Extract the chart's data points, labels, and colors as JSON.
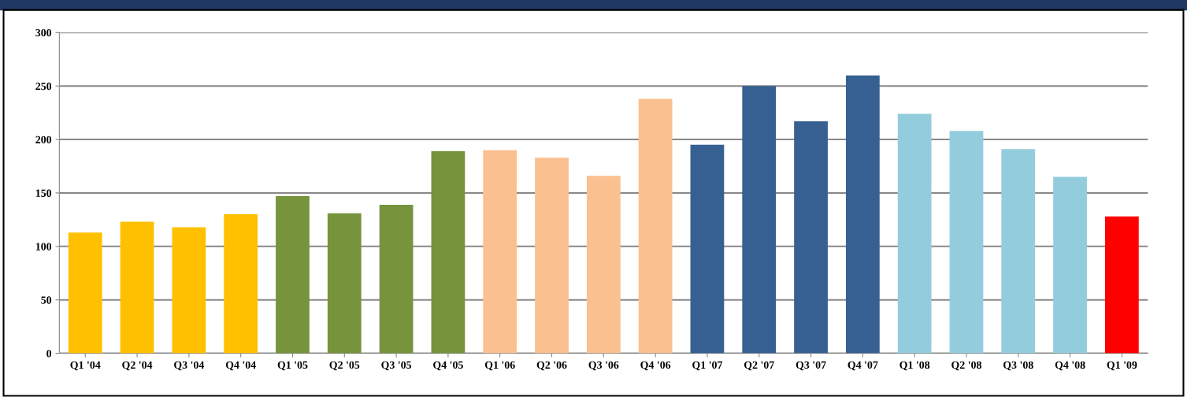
{
  "chart_data": {
    "type": "bar",
    "categories": [
      "Q1 '04",
      "Q2 '04",
      "Q3 '04",
      "Q4 '04",
      "Q1 '05",
      "Q2 '05",
      "Q3 '05",
      "Q4 '05",
      "Q1 '06",
      "Q2 '06",
      "Q3 '06",
      "Q4 '06",
      "Q1 '07",
      "Q2 '07",
      "Q3 '07",
      "Q4 '07",
      "Q1 '08",
      "Q2 '08",
      "Q3 '08",
      "Q4 '08",
      "Q1 '09"
    ],
    "values": [
      113,
      123,
      118,
      130,
      147,
      131,
      139,
      189,
      190,
      183,
      166,
      238,
      195,
      250,
      217,
      260,
      224,
      208,
      191,
      165,
      128
    ],
    "colors": [
      "#ffc000",
      "#ffc000",
      "#ffc000",
      "#ffc000",
      "#77933c",
      "#77933c",
      "#77933c",
      "#77933c",
      "#fac090",
      "#fac090",
      "#fac090",
      "#fac090",
      "#376092",
      "#376092",
      "#376092",
      "#376092",
      "#93cddd",
      "#93cddd",
      "#93cddd",
      "#93cddd",
      "#ff0000"
    ],
    "ylim": [
      0,
      300
    ],
    "yticks": [
      0,
      50,
      100,
      150,
      200,
      250,
      300
    ],
    "grid": "y"
  }
}
